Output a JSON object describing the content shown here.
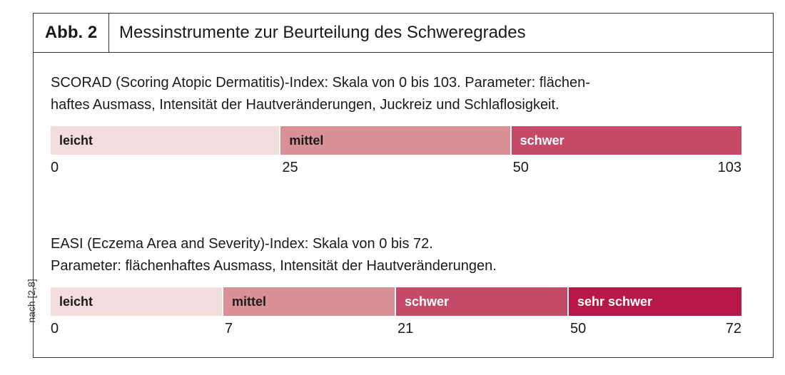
{
  "side_note": "nach [2,8]",
  "header": {
    "label": "Abb. 2",
    "title": "Messinstrumente zur Beurteilung des Schweregrades"
  },
  "chart_data": [
    {
      "type": "table",
      "description_lines": [
        "SCORAD (Scoring Atopic Dermatitis)-Index: Skala von 0 bis 103. Parameter: flächen-",
        "haftes Ausmass, Intensität der Hautveränderungen, Juckreiz und Schlaflosigkeit."
      ],
      "segments": [
        {
          "label": "leicht",
          "start": 0,
          "end": 25,
          "color": "#f3dcde",
          "text_color": "#1a1a1a"
        },
        {
          "label": "mittel",
          "start": 25,
          "end": 50,
          "color": "#d99196",
          "text_color": "#1a1a1a"
        },
        {
          "label": "schwer",
          "start": 50,
          "end": 103,
          "color": "#c44a68",
          "text_color": "#ffffff"
        }
      ],
      "ticks": [
        "0",
        "25",
        "50",
        "103"
      ],
      "tick_positions": [
        0,
        0.333,
        0.667,
        1
      ]
    },
    {
      "type": "table",
      "description_lines": [
        "EASI (Eczema Area and Severity)-Index: Skala von 0 bis 72.",
        "Parameter: flächenhaftes Ausmass, Intensität der Hautveränderungen."
      ],
      "segments": [
        {
          "label": "leicht",
          "start": 0,
          "end": 7,
          "color": "#f3dcde",
          "text_color": "#1a1a1a"
        },
        {
          "label": "mittel",
          "start": 7,
          "end": 21,
          "color": "#d99196",
          "text_color": "#1a1a1a"
        },
        {
          "label": "schwer",
          "start": 21,
          "end": 50,
          "color": "#c44a68",
          "text_color": "#ffffff"
        },
        {
          "label": "sehr schwer",
          "start": 50,
          "end": 72,
          "color": "#b8174a",
          "text_color": "#ffffff"
        }
      ],
      "ticks": [
        "0",
        "7",
        "21",
        "50",
        "72"
      ],
      "tick_positions": [
        0,
        0.25,
        0.5,
        0.75,
        1
      ]
    }
  ]
}
